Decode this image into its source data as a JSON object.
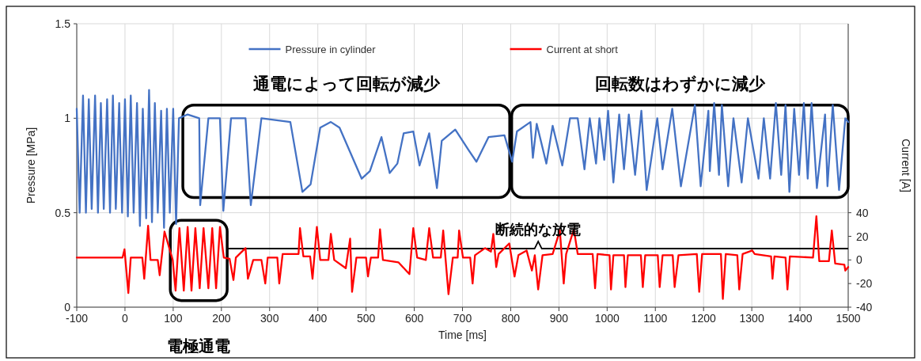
{
  "chart_data": {
    "type": "line",
    "xlabel": "Time [ms]",
    "ylabel": "Pressure [MPa]",
    "y2label": "Current [A]",
    "xlim": [
      -100,
      1500
    ],
    "xticks": [
      -100,
      0,
      100,
      200,
      300,
      400,
      500,
      600,
      700,
      800,
      900,
      1000,
      1100,
      1200,
      1300,
      1400,
      1500
    ],
    "ylim": [
      0,
      1.5
    ],
    "yticks": [
      0,
      0.5,
      1,
      1.5
    ],
    "y2lim": [
      -40,
      200
    ],
    "y2ticks": [
      -40,
      -20,
      0,
      20,
      40
    ],
    "grid": true,
    "legend": "top",
    "series": [
      {
        "name": "Pressure in cylinder",
        "color": "#4472c4",
        "x": [
          -100,
          -94,
          -87,
          -81,
          -75,
          -69,
          -62,
          -56,
          -50,
          -44,
          -37,
          -31,
          -25,
          -19,
          -12,
          -6,
          0,
          6,
          12,
          18,
          25,
          31,
          37,
          44,
          50,
          56,
          62,
          68,
          75,
          81,
          87,
          93,
          100,
          106,
          112,
          130,
          154,
          156,
          173,
          197,
          204,
          220,
          250,
          261,
          283,
          343,
          368,
          385,
          405,
          427,
          445,
          491,
          508,
          532,
          549,
          565,
          578,
          598,
          611,
          631,
          647,
          657,
          685,
          713,
          729,
          754,
          787,
          803,
          813,
          841,
          846,
          854,
          874,
          887,
          907,
          923,
          939,
          953,
          964,
          977,
          984,
          994,
          1002,
          1013,
          1025,
          1035,
          1045,
          1058,
          1071,
          1082,
          1104,
          1115,
          1135,
          1153,
          1182,
          1194,
          1210,
          1213,
          1222,
          1232,
          1238,
          1251,
          1262,
          1279,
          1292,
          1314,
          1325,
          1338,
          1350,
          1361,
          1370,
          1378,
          1388,
          1398,
          1408,
          1416,
          1424,
          1435,
          1452,
          1457,
          1468,
          1481,
          1494,
          1500
        ],
        "values": [
          1.05,
          0.5,
          1.12,
          0.5,
          1.1,
          0.52,
          1.12,
          0.5,
          1.08,
          0.52,
          1.1,
          0.5,
          1.12,
          0.52,
          1.08,
          0.5,
          1.1,
          0.48,
          1.12,
          0.5,
          1.08,
          0.43,
          1.05,
          0.47,
          1.15,
          0.45,
          1.08,
          0.5,
          1.04,
          0.42,
          1.05,
          0.5,
          1.05,
          0.44,
          1.0,
          1.02,
          1.0,
          0.54,
          1.0,
          1.0,
          0.51,
          1.0,
          1.0,
          0.54,
          1.0,
          0.98,
          0.61,
          0.65,
          0.95,
          0.98,
          0.95,
          0.68,
          0.72,
          0.9,
          0.71,
          0.76,
          0.92,
          0.93,
          0.75,
          0.92,
          0.63,
          0.88,
          0.94,
          0.83,
          0.77,
          0.9,
          0.91,
          0.77,
          0.93,
          0.98,
          0.79,
          0.97,
          0.76,
          0.96,
          0.75,
          1.0,
          1.0,
          0.73,
          1.0,
          0.76,
          1.0,
          0.78,
          1.04,
          0.66,
          1.02,
          0.73,
          1.02,
          0.7,
          1.04,
          0.62,
          1.0,
          0.73,
          1.05,
          0.64,
          1.07,
          0.64,
          1.04,
          0.72,
          1.08,
          0.7,
          1.07,
          0.64,
          1.0,
          0.66,
          1.0,
          0.68,
          1.0,
          0.68,
          1.08,
          0.7,
          1.07,
          0.61,
          1.05,
          0.7,
          1.08,
          0.68,
          1.08,
          0.63,
          1.02,
          0.64,
          1.07,
          0.62,
          1.0,
          0.98
        ]
      },
      {
        "name": "Current at short",
        "color": "#ff0000",
        "axis": "y2",
        "x": [
          -100,
          -5,
          -1,
          7,
          12,
          36,
          40,
          48,
          53,
          68,
          72,
          82,
          99,
          105,
          113,
          122,
          130,
          138,
          146,
          155,
          163,
          173,
          181,
          189,
          197,
          205,
          217,
          225,
          230,
          250,
          255,
          266,
          283,
          291,
          296,
          316,
          320,
          327,
          360,
          363,
          370,
          384,
          389,
          398,
          405,
          422,
          427,
          434,
          458,
          467,
          471,
          480,
          500,
          504,
          510,
          525,
          529,
          535,
          567,
          590,
          598,
          606,
          624,
          631,
          639,
          655,
          660,
          671,
          680,
          690,
          693,
          701,
          716,
          721,
          726,
          747,
          759,
          764,
          770,
          775,
          797,
          808,
          816,
          833,
          844,
          850,
          857,
          866,
          887,
          902,
          910,
          915,
          931,
          939,
          970,
          975,
          980,
          1005,
          1008,
          1013,
          1035,
          1038,
          1043,
          1070,
          1074,
          1079,
          1105,
          1109,
          1115,
          1136,
          1140,
          1148,
          1186,
          1191,
          1197,
          1236,
          1240,
          1246,
          1270,
          1274,
          1281,
          1301,
          1306,
          1340,
          1343,
          1347,
          1370,
          1374,
          1379,
          1427,
          1434,
          1440,
          1460,
          1466,
          1473,
          1492,
          1494,
          1500
        ],
        "values": [
          2,
          2,
          9,
          -28,
          2,
          2,
          -16,
          29,
          0,
          0,
          -13,
          24,
          0,
          -26,
          27,
          -26,
          28,
          -26,
          27,
          -24,
          27,
          -24,
          27,
          -24,
          28,
          2,
          1,
          -17,
          2,
          10,
          -16,
          0,
          0,
          -20,
          2,
          2,
          -20,
          5,
          5,
          27,
          3,
          3,
          -16,
          28,
          0,
          0,
          22,
          0,
          -7,
          18,
          -27,
          2,
          2,
          -14,
          2,
          2,
          26,
          0,
          -2,
          -12,
          27,
          2,
          0,
          27,
          2,
          2,
          25,
          -29,
          2,
          2,
          25,
          2,
          2,
          -20,
          4,
          10,
          7,
          22,
          -6,
          5,
          14,
          -14,
          4,
          8,
          -9,
          4,
          -25,
          4,
          5,
          25,
          -20,
          5,
          26,
          5,
          5,
          -24,
          5,
          4,
          -25,
          4,
          4,
          -23,
          4,
          4,
          -23,
          4,
          4,
          -23,
          4,
          4,
          -23,
          4,
          5,
          -27,
          5,
          5,
          -33,
          5,
          4,
          -25,
          5,
          8,
          5,
          3,
          -16,
          3,
          2,
          -25,
          3,
          2,
          37,
          -1,
          -1,
          25,
          -3,
          -4,
          -9,
          -6
        ]
      }
    ],
    "annotations": [
      "通電によって回転が減少",
      "回転数はわずかに減少",
      "断続的な放電",
      "電極通電"
    ]
  }
}
